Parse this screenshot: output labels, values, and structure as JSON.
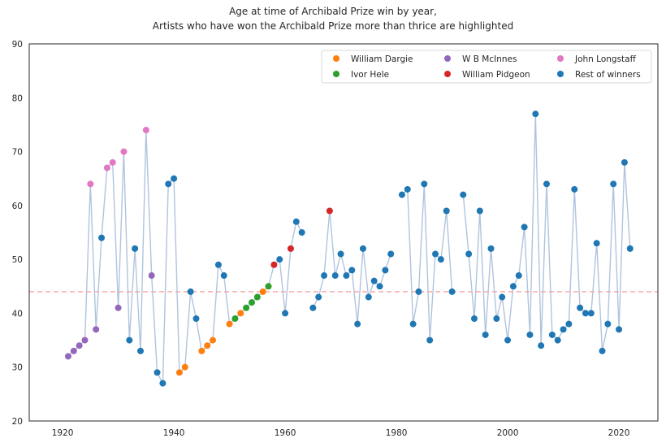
{
  "chart_data": {
    "type": "scatter",
    "title": "Age at time of Archibald Prize win by year,",
    "subtitle": "Artists who have won the Archibald Prize more than thrice are highlighted",
    "xlabel": "",
    "ylabel": "",
    "xlim": [
      1914,
      2027
    ],
    "ylim": [
      20,
      90
    ],
    "x_ticks": [
      "1920",
      "1940",
      "1960",
      "1980",
      "2000",
      "2020"
    ],
    "y_ticks": [
      "20",
      "30",
      "40",
      "50",
      "60",
      "70",
      "80",
      "90"
    ],
    "grid": false,
    "legend_position": "top-right",
    "mean_line": 44,
    "line_color": "#b0c4de",
    "mean_line_color": "#f4a3a3",
    "series": [
      {
        "name": "William Dargie",
        "color": "#ff7f0e",
        "points": [
          [
            1941,
            29
          ],
          [
            1942,
            30
          ],
          [
            1945,
            33
          ],
          [
            1946,
            34
          ],
          [
            1947,
            35
          ],
          [
            1950,
            38
          ],
          [
            1952,
            40
          ],
          [
            1956,
            44
          ]
        ]
      },
      {
        "name": "W B McInnes",
        "color": "#9467bd",
        "points": [
          [
            1921,
            32
          ],
          [
            1922,
            33
          ],
          [
            1923,
            34
          ],
          [
            1924,
            35
          ],
          [
            1926,
            37
          ],
          [
            1930,
            41
          ],
          [
            1936,
            47
          ]
        ]
      },
      {
        "name": "John Longstaff",
        "color": "#e377c2",
        "points": [
          [
            1925,
            64
          ],
          [
            1928,
            67
          ],
          [
            1929,
            68
          ],
          [
            1931,
            70
          ],
          [
            1935,
            74
          ]
        ]
      },
      {
        "name": "Ivor Hele",
        "color": "#2ca02c",
        "points": [
          [
            1951,
            39
          ],
          [
            1953,
            41
          ],
          [
            1954,
            42
          ],
          [
            1955,
            43
          ],
          [
            1957,
            45
          ]
        ]
      },
      {
        "name": "William Pidgeon",
        "color": "#d62728",
        "points": [
          [
            1958,
            49
          ],
          [
            1961,
            52
          ],
          [
            1968,
            59
          ]
        ]
      },
      {
        "name": "Rest of winners",
        "color": "#1f77b4",
        "points": [
          [
            1927,
            54
          ],
          [
            1932,
            35
          ],
          [
            1933,
            52
          ],
          [
            1934,
            33
          ],
          [
            1937,
            29
          ],
          [
            1938,
            27
          ],
          [
            1939,
            64
          ],
          [
            1940,
            65
          ],
          [
            1943,
            44
          ],
          [
            1944,
            39
          ],
          [
            1948,
            49
          ],
          [
            1949,
            47
          ],
          [
            1959,
            50
          ],
          [
            1960,
            40
          ],
          [
            1962,
            57
          ],
          [
            1963,
            55
          ],
          [
            1965,
            41
          ],
          [
            1966,
            43
          ],
          [
            1967,
            47
          ],
          [
            1969,
            47
          ],
          [
            1970,
            51
          ],
          [
            1971,
            47
          ],
          [
            1972,
            48
          ],
          [
            1973,
            38
          ],
          [
            1974,
            52
          ],
          [
            1975,
            43
          ],
          [
            1976,
            46
          ],
          [
            1977,
            45
          ],
          [
            1978,
            48
          ],
          [
            1979,
            51
          ],
          [
            1981,
            62
          ],
          [
            1982,
            63
          ],
          [
            1983,
            38
          ],
          [
            1984,
            44
          ],
          [
            1985,
            64
          ],
          [
            1986,
            35
          ],
          [
            1987,
            51
          ],
          [
            1988,
            50
          ],
          [
            1989,
            59
          ],
          [
            1990,
            44
          ],
          [
            1992,
            62
          ],
          [
            1993,
            51
          ],
          [
            1994,
            39
          ],
          [
            1995,
            59
          ],
          [
            1996,
            36
          ],
          [
            1997,
            52
          ],
          [
            1998,
            39
          ],
          [
            1999,
            43
          ],
          [
            2000,
            35
          ],
          [
            2001,
            45
          ],
          [
            2002,
            47
          ],
          [
            2003,
            56
          ],
          [
            2004,
            36
          ],
          [
            2005,
            77
          ],
          [
            2006,
            34
          ],
          [
            2007,
            64
          ],
          [
            2008,
            36
          ],
          [
            2009,
            35
          ],
          [
            2010,
            37
          ],
          [
            2011,
            38
          ],
          [
            2012,
            63
          ],
          [
            2013,
            41
          ],
          [
            2014,
            40
          ],
          [
            2015,
            40
          ],
          [
            2016,
            53
          ],
          [
            2017,
            33
          ],
          [
            2018,
            38
          ],
          [
            2019,
            64
          ],
          [
            2020,
            37
          ],
          [
            2021,
            68
          ],
          [
            2022,
            52
          ]
        ]
      }
    ]
  }
}
